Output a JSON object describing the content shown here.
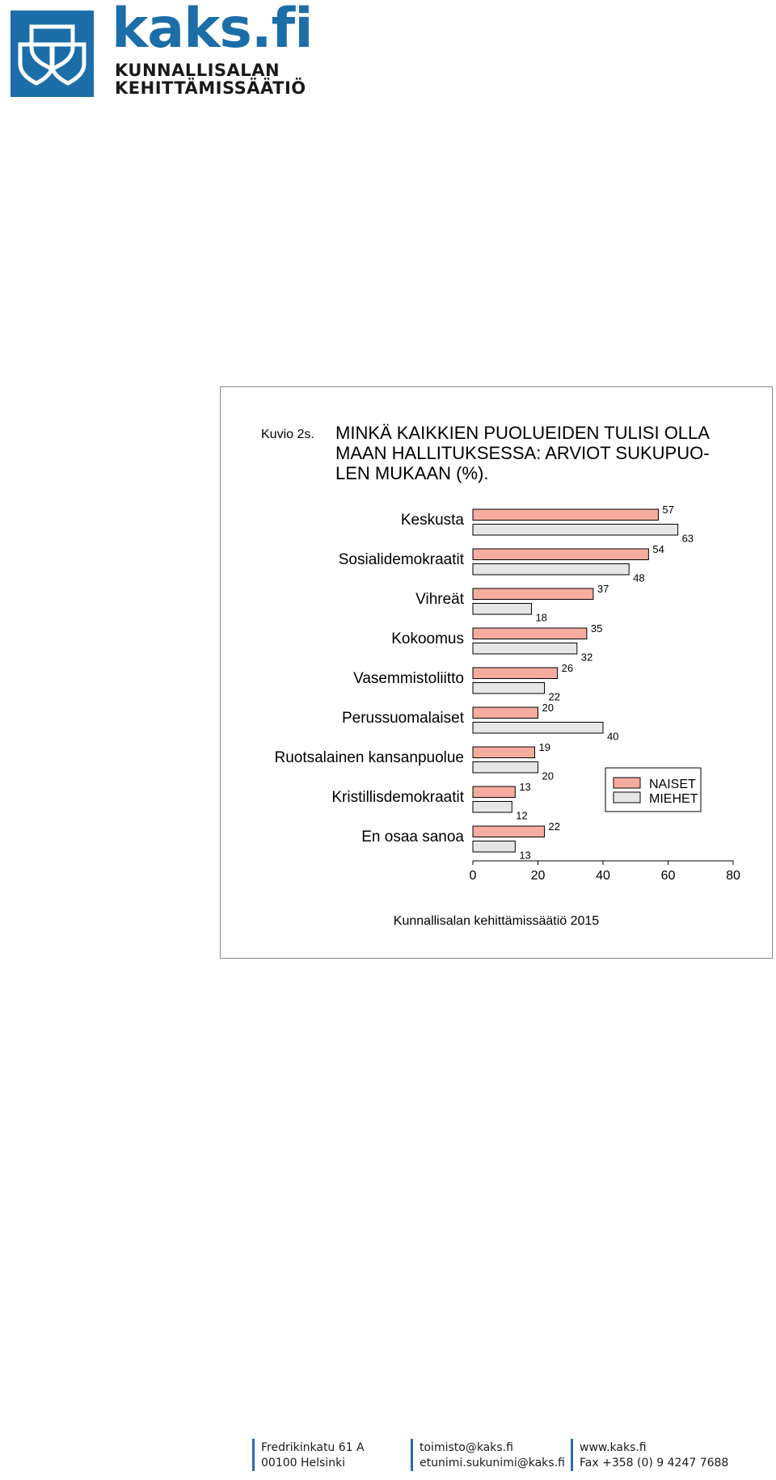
{
  "logo": {
    "name": "kaks.fi",
    "line1": "KUNNALLISALAN",
    "line2": "KEHITTÄMISSÄÄTIÖ"
  },
  "figure": {
    "label": "Kuvio 2s.",
    "title_lines": [
      "MINKÄ KAIKKIEN PUOLUEIDEN TULISI OLLA",
      "MAAN HALLITUKSESSA: ARVIOT SUKUPUO-",
      "LEN MUKAAN (%)."
    ],
    "source": "Kunnallisalan kehittämissäätiö 2015"
  },
  "chart_data": {
    "type": "bar",
    "orientation": "horizontal",
    "categories": [
      "Keskusta",
      "Sosialidemokraatit",
      "Vihreät",
      "Kokoomus",
      "Vasemmistoliitto",
      "Perussuomalaiset",
      "Ruotsalainen kansanpuolue",
      "Kristillisdemokraatit",
      "En osaa sanoa"
    ],
    "series": [
      {
        "name": "NAISET",
        "values": [
          57,
          54,
          37,
          35,
          26,
          20,
          19,
          13,
          22
        ],
        "color": "#f6ad9f"
      },
      {
        "name": "MIEHET",
        "values": [
          63,
          48,
          18,
          32,
          22,
          40,
          20,
          12,
          13
        ],
        "color": "#e6e6e6"
      }
    ],
    "xlim": [
      0,
      80
    ],
    "xticks": [
      0,
      20,
      40,
      60,
      80
    ],
    "legend_position": "right",
    "grid": false,
    "data_labels": true
  },
  "footer": {
    "col1": [
      "Fredrikinkatu 61 A",
      "00100 Helsinki"
    ],
    "col2": [
      "toimisto@kaks.fi",
      "etunimi.sukunimi@kaks.fi"
    ],
    "col3": [
      "www.kaks.fi",
      "Fax +358 (0) 9 4247 7688"
    ]
  },
  "colors": {
    "brand_blue": "#1c6ea8",
    "footer_blue": "#2a6cad"
  }
}
